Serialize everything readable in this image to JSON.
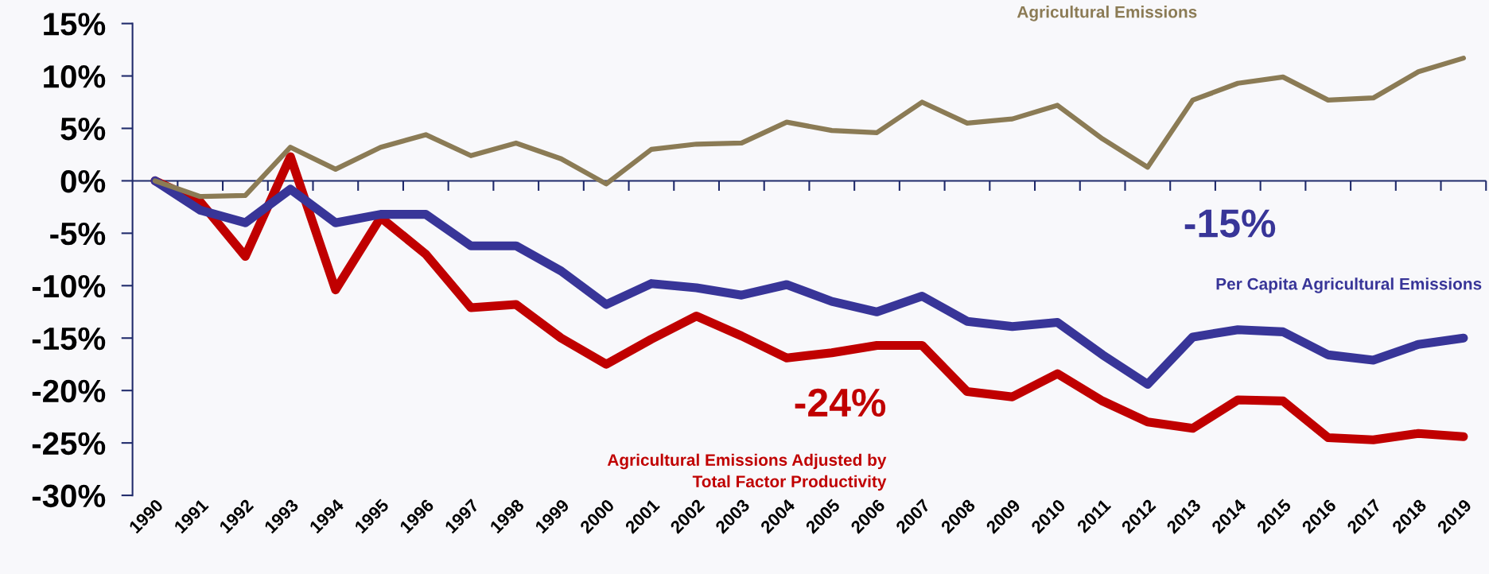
{
  "chart_data": {
    "type": "line",
    "categories": [
      "1990",
      "1991",
      "1992",
      "1993",
      "1994",
      "1995",
      "1996",
      "1997",
      "1998",
      "1999",
      "2000",
      "2001",
      "2002",
      "2003",
      "2004",
      "2005",
      "2006",
      "2007",
      "2008",
      "2009",
      "2010",
      "2011",
      "2012",
      "2013",
      "2014",
      "2015",
      "2016",
      "2017",
      "2018",
      "2019"
    ],
    "series": [
      {
        "name": "Agricultural Emissions",
        "color": "#8b7b55",
        "values": [
          0,
          -1.5,
          -1.4,
          3.2,
          1.1,
          3.2,
          4.4,
          2.4,
          3.6,
          2.1,
          -0.3,
          3.0,
          3.5,
          3.6,
          5.6,
          4.8,
          4.6,
          7.5,
          5.5,
          5.9,
          7.2,
          4.0,
          1.3,
          7.7,
          9.3,
          9.9,
          7.7,
          7.9,
          10.4,
          11.7
        ]
      },
      {
        "name": "Per Capita Agricultural Emissions",
        "color": "#383598",
        "values": [
          0,
          -2.8,
          -4.0,
          -0.8,
          -4.0,
          -3.2,
          -3.2,
          -6.2,
          -6.2,
          -8.6,
          -11.8,
          -9.8,
          -10.2,
          -10.9,
          -9.9,
          -11.5,
          -12.5,
          -11.0,
          -13.4,
          -13.9,
          -13.5,
          -16.6,
          -19.4,
          -14.9,
          -14.2,
          -14.4,
          -16.6,
          -17.1,
          -15.6,
          -15.0
        ]
      },
      {
        "name": "Agricultural Emissions Adjusted by\nTotal Factor Productivity",
        "color": "#c00000",
        "values": [
          0,
          -2.0,
          -7.2,
          2.3,
          -10.4,
          -3.5,
          -7.0,
          -12.1,
          -11.8,
          -15.0,
          -17.5,
          -15.1,
          -12.9,
          -14.8,
          -16.9,
          -16.4,
          -15.7,
          -15.7,
          -20.1,
          -20.6,
          -18.4,
          -21.0,
          -23.0,
          -23.6,
          -20.9,
          -21.0,
          -24.5,
          -24.7,
          -24.1,
          -24.4
        ]
      }
    ],
    "annotations": [
      "-15%",
      "-24%"
    ],
    "ylim": [
      -30,
      15
    ],
    "yticks": [
      {
        "value": -30,
        "label": "-30%"
      },
      {
        "value": -25,
        "label": "-25%"
      },
      {
        "value": -20,
        "label": "-20%"
      },
      {
        "value": -15,
        "label": "-15%"
      },
      {
        "value": -10,
        "label": "-10%"
      },
      {
        "value": -5,
        "label": "-5%"
      },
      {
        "value": 0,
        "label": "0%"
      },
      {
        "value": 5,
        "label": "5%"
      },
      {
        "value": 10,
        "label": "10%"
      },
      {
        "value": 15,
        "label": "15%"
      }
    ],
    "ref_lines": [
      {
        "axis": "y",
        "value": 0,
        "color": "#1f2a6b",
        "line_style": "solid"
      }
    ],
    "grid": false,
    "legend": false,
    "marker": "none",
    "line_style": "solid"
  }
}
